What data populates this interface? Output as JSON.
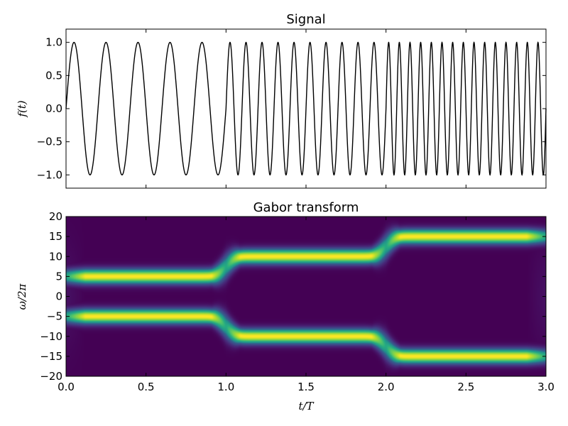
{
  "chart_data": [
    {
      "type": "line",
      "title": "Signal",
      "xlabel": "",
      "ylabel": "f(t)",
      "xlim": [
        0,
        3
      ],
      "ylim": [
        -1.2,
        1.2
      ],
      "yticks": [
        1.0,
        0.5,
        0.0,
        -0.5,
        -1.0
      ],
      "ytick_labels": [
        "1.0",
        "0.5",
        "0.0",
        "−0.5",
        "−1.0"
      ],
      "series": [
        {
          "function": "sin(2π·freq·t)",
          "segments": [
            {
              "t_start": 0,
              "t_end": 1,
              "freq": 5
            },
            {
              "t_start": 1,
              "t_end": 2,
              "freq": 10
            },
            {
              "t_start": 2,
              "t_end": 3,
              "freq": 15
            }
          ],
          "color": "#000000"
        }
      ],
      "grid": false
    },
    {
      "type": "heatmap",
      "title": "Gabor transform",
      "xlabel": "t/T",
      "ylabel": "ω/2π",
      "xlim": [
        0,
        3
      ],
      "ylim": [
        -20,
        20
      ],
      "xticks": [
        0.0,
        0.5,
        1.0,
        1.5,
        2.0,
        2.5,
        3.0
      ],
      "xtick_labels": [
        "0.0",
        "0.5",
        "1.0",
        "1.5",
        "2.0",
        "2.5",
        "3.0"
      ],
      "yticks": [
        20,
        15,
        10,
        5,
        0,
        -5,
        -10,
        -15,
        -20
      ],
      "ytick_labels": [
        "20",
        "15",
        "10",
        "5",
        "0",
        "−5",
        "−10",
        "−15",
        "−20"
      ],
      "bands": [
        {
          "t_start": 0,
          "t_end": 1,
          "freq": 5
        },
        {
          "t_start": 1,
          "t_end": 2,
          "freq": 10
        },
        {
          "t_start": 2,
          "t_end": 3,
          "freq": 15
        }
      ],
      "colormap": "viridis",
      "colors": {
        "low": "#440154",
        "mid": "#21918c",
        "high": "#fde725"
      }
    }
  ]
}
